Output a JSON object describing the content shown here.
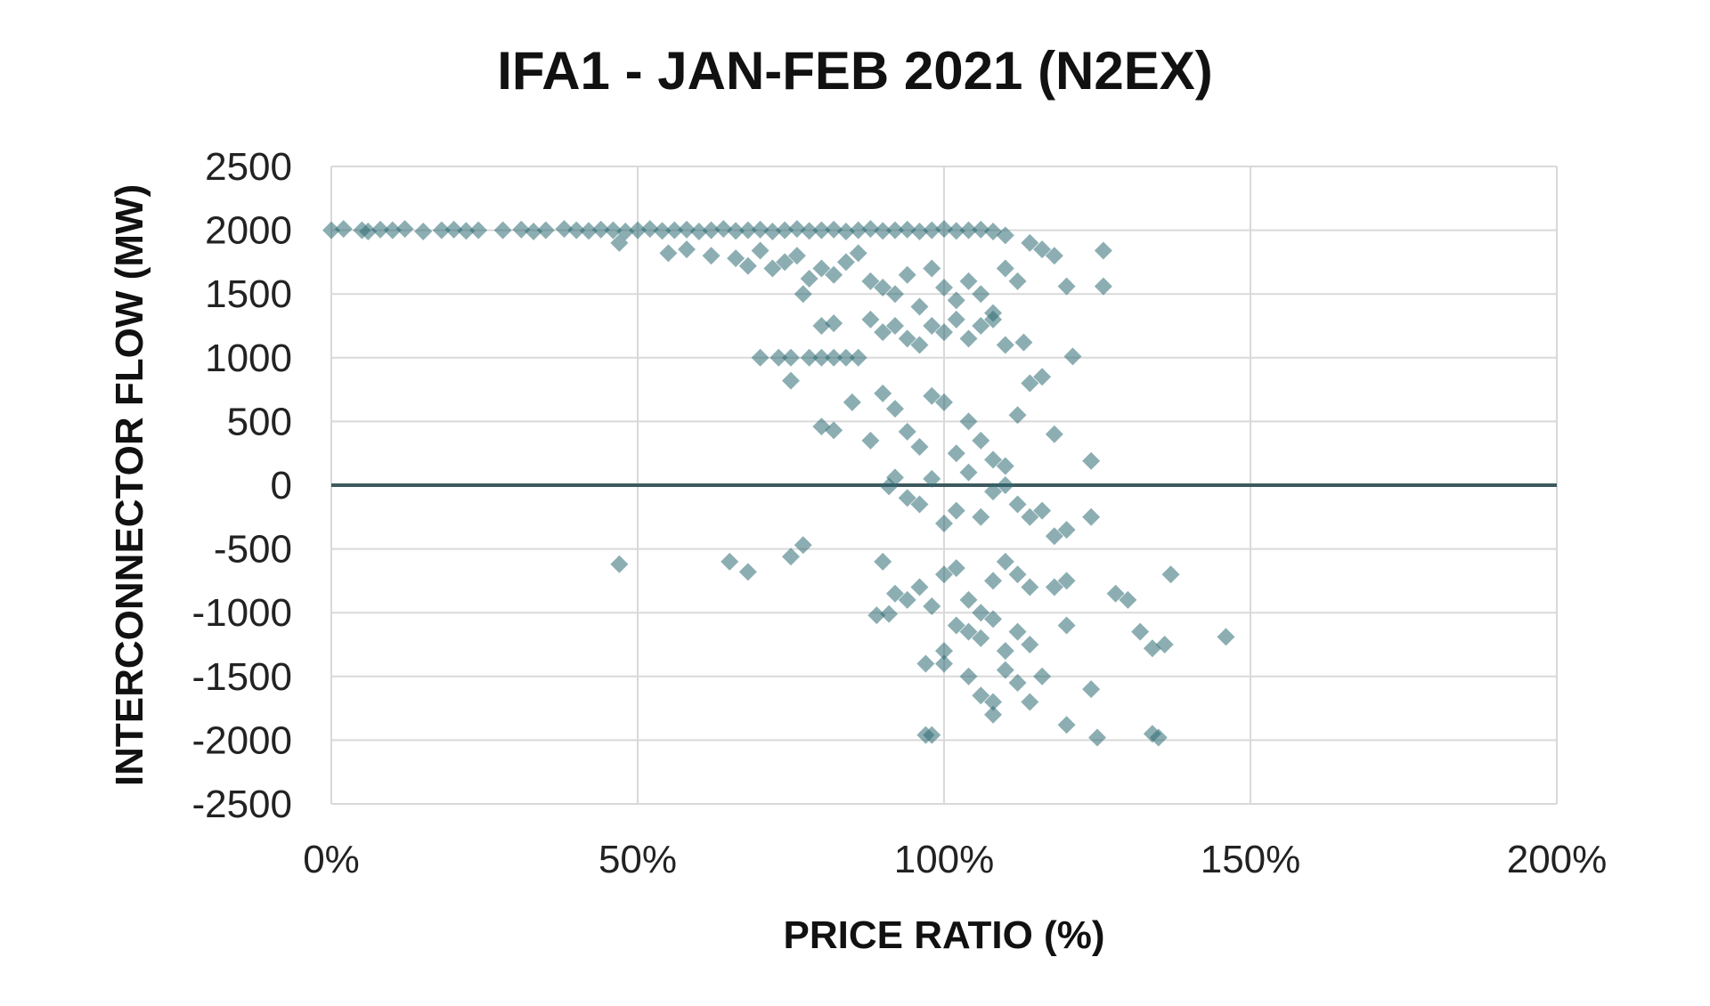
{
  "chart_data": {
    "type": "scatter",
    "title": "IFA1 - JAN-FEB 2021 (N2EX)",
    "xlabel": "PRICE RATIO (%)",
    "ylabel": "INTERCONNECTOR FLOW (MW)",
    "xlim": [
      0,
      200
    ],
    "ylim": [
      -2500,
      2500
    ],
    "x_ticks": [
      0,
      50,
      100,
      150,
      200
    ],
    "x_tick_labels": [
      "0%",
      "50%",
      "100%",
      "150%",
      "200%"
    ],
    "y_ticks": [
      2500,
      2000,
      1500,
      1000,
      500,
      0,
      -500,
      -1000,
      -1500,
      -2000,
      -2500
    ],
    "y_tick_labels": [
      "2500",
      "2000",
      "1500",
      "1000",
      "500",
      "0",
      "-500",
      "-1000",
      "-1500",
      "-2000",
      "-2500"
    ],
    "grid": true,
    "legend": "none",
    "marker": "diamond",
    "marker_color": "#2e6b72",
    "series": [
      {
        "points": [
          [
            0,
            2000
          ],
          [
            2,
            2010
          ],
          [
            5,
            2000
          ],
          [
            6,
            1990
          ],
          [
            8,
            2005
          ],
          [
            10,
            2000
          ],
          [
            12,
            2010
          ],
          [
            15,
            1990
          ],
          [
            18,
            2000
          ],
          [
            20,
            2005
          ],
          [
            22,
            1995
          ],
          [
            24,
            2000
          ],
          [
            28,
            2000
          ],
          [
            31,
            2005
          ],
          [
            33,
            1990
          ],
          [
            35,
            2000
          ],
          [
            38,
            2010
          ],
          [
            40,
            2000
          ],
          [
            42,
            1995
          ],
          [
            44,
            2005
          ],
          [
            46,
            2000
          ],
          [
            48,
            1990
          ],
          [
            50,
            2000
          ],
          [
            52,
            2010
          ],
          [
            54,
            1995
          ],
          [
            56,
            2000
          ],
          [
            58,
            2005
          ],
          [
            60,
            1990
          ],
          [
            62,
            2000
          ],
          [
            64,
            2010
          ],
          [
            66,
            1995
          ],
          [
            68,
            2000
          ],
          [
            70,
            2005
          ],
          [
            72,
            1990
          ],
          [
            74,
            2000
          ],
          [
            76,
            2010
          ],
          [
            78,
            1995
          ],
          [
            80,
            2000
          ],
          [
            82,
            2005
          ],
          [
            84,
            1990
          ],
          [
            86,
            2000
          ],
          [
            88,
            2010
          ],
          [
            90,
            1995
          ],
          [
            92,
            2000
          ],
          [
            94,
            2005
          ],
          [
            96,
            1990
          ],
          [
            98,
            2000
          ],
          [
            100,
            2010
          ],
          [
            102,
            1995
          ],
          [
            104,
            2000
          ],
          [
            106,
            2005
          ],
          [
            108,
            1990
          ],
          [
            110,
            1960
          ],
          [
            47,
            1900
          ],
          [
            55,
            1820
          ],
          [
            58,
            1850
          ],
          [
            62,
            1800
          ],
          [
            66,
            1780
          ],
          [
            68,
            1720
          ],
          [
            70,
            1840
          ],
          [
            72,
            1700
          ],
          [
            74,
            1750
          ],
          [
            76,
            1800
          ],
          [
            77,
            1500
          ],
          [
            78,
            1620
          ],
          [
            80,
            1700
          ],
          [
            82,
            1650
          ],
          [
            84,
            1750
          ],
          [
            86,
            1820
          ],
          [
            88,
            1600
          ],
          [
            90,
            1550
          ],
          [
            92,
            1500
          ],
          [
            94,
            1650
          ],
          [
            96,
            1400
          ],
          [
            98,
            1700
          ],
          [
            100,
            1550
          ],
          [
            102,
            1450
          ],
          [
            104,
            1600
          ],
          [
            106,
            1500
          ],
          [
            108,
            1350
          ],
          [
            110,
            1700
          ],
          [
            112,
            1600
          ],
          [
            114,
            1900
          ],
          [
            116,
            1850
          ],
          [
            118,
            1800
          ],
          [
            120,
            1560
          ],
          [
            126,
            1840
          ],
          [
            126,
            1560
          ],
          [
            70,
            1000
          ],
          [
            73,
            1000
          ],
          [
            75,
            1000
          ],
          [
            78,
            1000
          ],
          [
            80,
            1000
          ],
          [
            82,
            1000
          ],
          [
            84,
            1000
          ],
          [
            86,
            1000
          ],
          [
            80,
            1250
          ],
          [
            82,
            1270
          ],
          [
            88,
            1300
          ],
          [
            90,
            1200
          ],
          [
            92,
            1250
          ],
          [
            94,
            1150
          ],
          [
            96,
            1100
          ],
          [
            98,
            1250
          ],
          [
            100,
            1200
          ],
          [
            102,
            1300
          ],
          [
            104,
            1150
          ],
          [
            106,
            1250
          ],
          [
            108,
            1300
          ],
          [
            110,
            1100
          ],
          [
            113,
            1120
          ],
          [
            121,
            1010
          ],
          [
            75,
            820
          ],
          [
            80,
            460
          ],
          [
            82,
            430
          ],
          [
            85,
            650
          ],
          [
            88,
            350
          ],
          [
            90,
            720
          ],
          [
            92,
            600
          ],
          [
            94,
            420
          ],
          [
            96,
            300
          ],
          [
            98,
            700
          ],
          [
            100,
            650
          ],
          [
            102,
            250
          ],
          [
            104,
            500
          ],
          [
            106,
            350
          ],
          [
            108,
            200
          ],
          [
            110,
            150
          ],
          [
            112,
            550
          ],
          [
            114,
            800
          ],
          [
            116,
            850
          ],
          [
            118,
            400
          ],
          [
            124,
            190
          ],
          [
            91,
            -10
          ],
          [
            92,
            60
          ],
          [
            94,
            -100
          ],
          [
            96,
            -150
          ],
          [
            98,
            50
          ],
          [
            100,
            -300
          ],
          [
            102,
            -200
          ],
          [
            104,
            100
          ],
          [
            106,
            -250
          ],
          [
            108,
            -50
          ],
          [
            110,
            0
          ],
          [
            112,
            -150
          ],
          [
            114,
            -250
          ],
          [
            116,
            -200
          ],
          [
            118,
            -400
          ],
          [
            120,
            -350
          ],
          [
            124,
            -250
          ],
          [
            47,
            -620
          ],
          [
            65,
            -600
          ],
          [
            68,
            -680
          ],
          [
            75,
            -560
          ],
          [
            77,
            -470
          ],
          [
            90,
            -600
          ],
          [
            92,
            -850
          ],
          [
            94,
            -900
          ],
          [
            96,
            -800
          ],
          [
            98,
            -950
          ],
          [
            100,
            -700
          ],
          [
            102,
            -650
          ],
          [
            104,
            -900
          ],
          [
            106,
            -1000
          ],
          [
            108,
            -750
          ],
          [
            110,
            -600
          ],
          [
            112,
            -700
          ],
          [
            114,
            -800
          ],
          [
            118,
            -800
          ],
          [
            120,
            -750
          ],
          [
            128,
            -850
          ],
          [
            130,
            -900
          ],
          [
            89,
            -1020
          ],
          [
            91,
            -1010
          ],
          [
            100,
            -1300
          ],
          [
            102,
            -1100
          ],
          [
            104,
            -1150
          ],
          [
            106,
            -1200
          ],
          [
            108,
            -1050
          ],
          [
            110,
            -1300
          ],
          [
            112,
            -1150
          ],
          [
            114,
            -1250
          ],
          [
            120,
            -1100
          ],
          [
            132,
            -1150
          ],
          [
            134,
            -1280
          ],
          [
            136,
            -1250
          ],
          [
            137,
            -700
          ],
          [
            146,
            -1190
          ],
          [
            97,
            -1400
          ],
          [
            100,
            -1400
          ],
          [
            104,
            -1500
          ],
          [
            106,
            -1650
          ],
          [
            108,
            -1700
          ],
          [
            110,
            -1450
          ],
          [
            112,
            -1550
          ],
          [
            114,
            -1700
          ],
          [
            116,
            -1500
          ],
          [
            124,
            -1600
          ],
          [
            98,
            -1960
          ],
          [
            97,
            -1960
          ],
          [
            108,
            -1800
          ],
          [
            120,
            -1880
          ],
          [
            125,
            -1980
          ],
          [
            134,
            -1950
          ],
          [
            135,
            -1980
          ]
        ]
      }
    ]
  }
}
